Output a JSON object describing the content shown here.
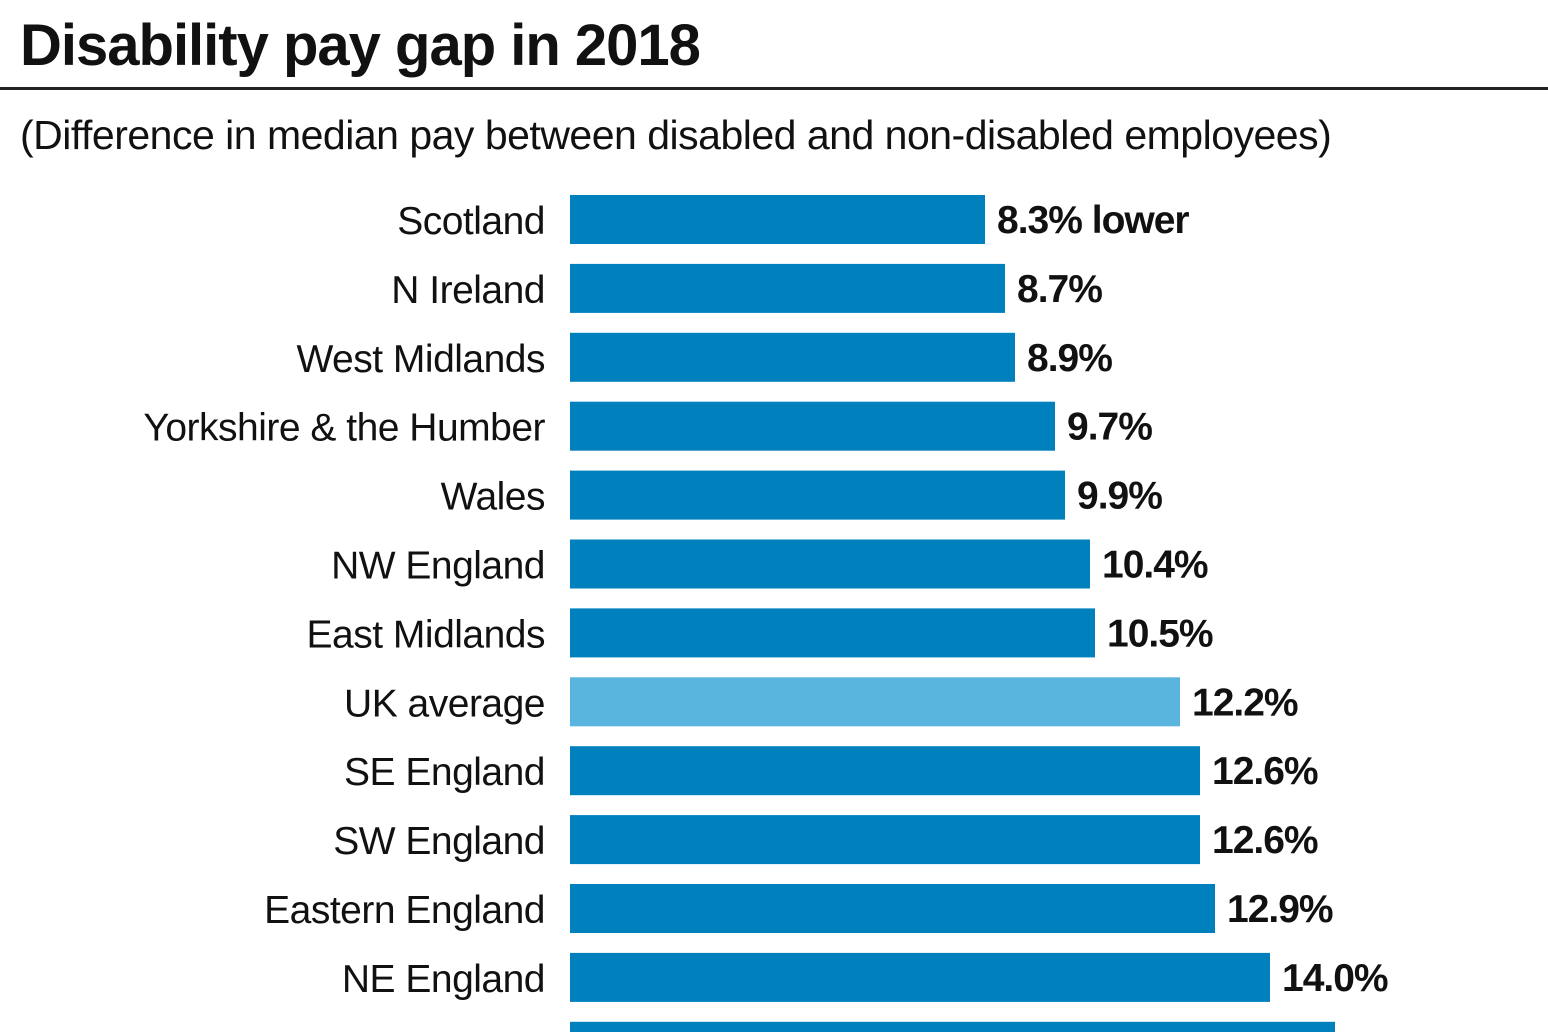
{
  "chart_data": {
    "type": "bar",
    "orientation": "horizontal",
    "title": "Disability pay gap in 2018",
    "subtitle": "(Difference in median pay between disabled and non-disabled employees)",
    "categories": [
      "Scotland",
      "N Ireland",
      "West Midlands",
      "Yorkshire & the Humber",
      "Wales",
      "NW England",
      "East Midlands",
      "UK average",
      "SE England",
      "SW England",
      "Eastern England",
      "NE England",
      ""
    ],
    "values": [
      8.3,
      8.7,
      8.9,
      9.7,
      9.9,
      10.4,
      10.5,
      12.2,
      12.6,
      12.6,
      12.9,
      14.0,
      15.3
    ],
    "labels": [
      "8.3% lower",
      "8.7%",
      "8.9%",
      "9.7%",
      "9.9%",
      "10.4%",
      "10.5%",
      "12.2%",
      "12.6%",
      "12.6%",
      "12.9%",
      "14.0%",
      ""
    ],
    "highlight_category": "UK average",
    "xlim": [
      0,
      20
    ],
    "grid": false,
    "colors": {
      "bar": "#0080bd",
      "highlight": "#5ab5de"
    }
  }
}
